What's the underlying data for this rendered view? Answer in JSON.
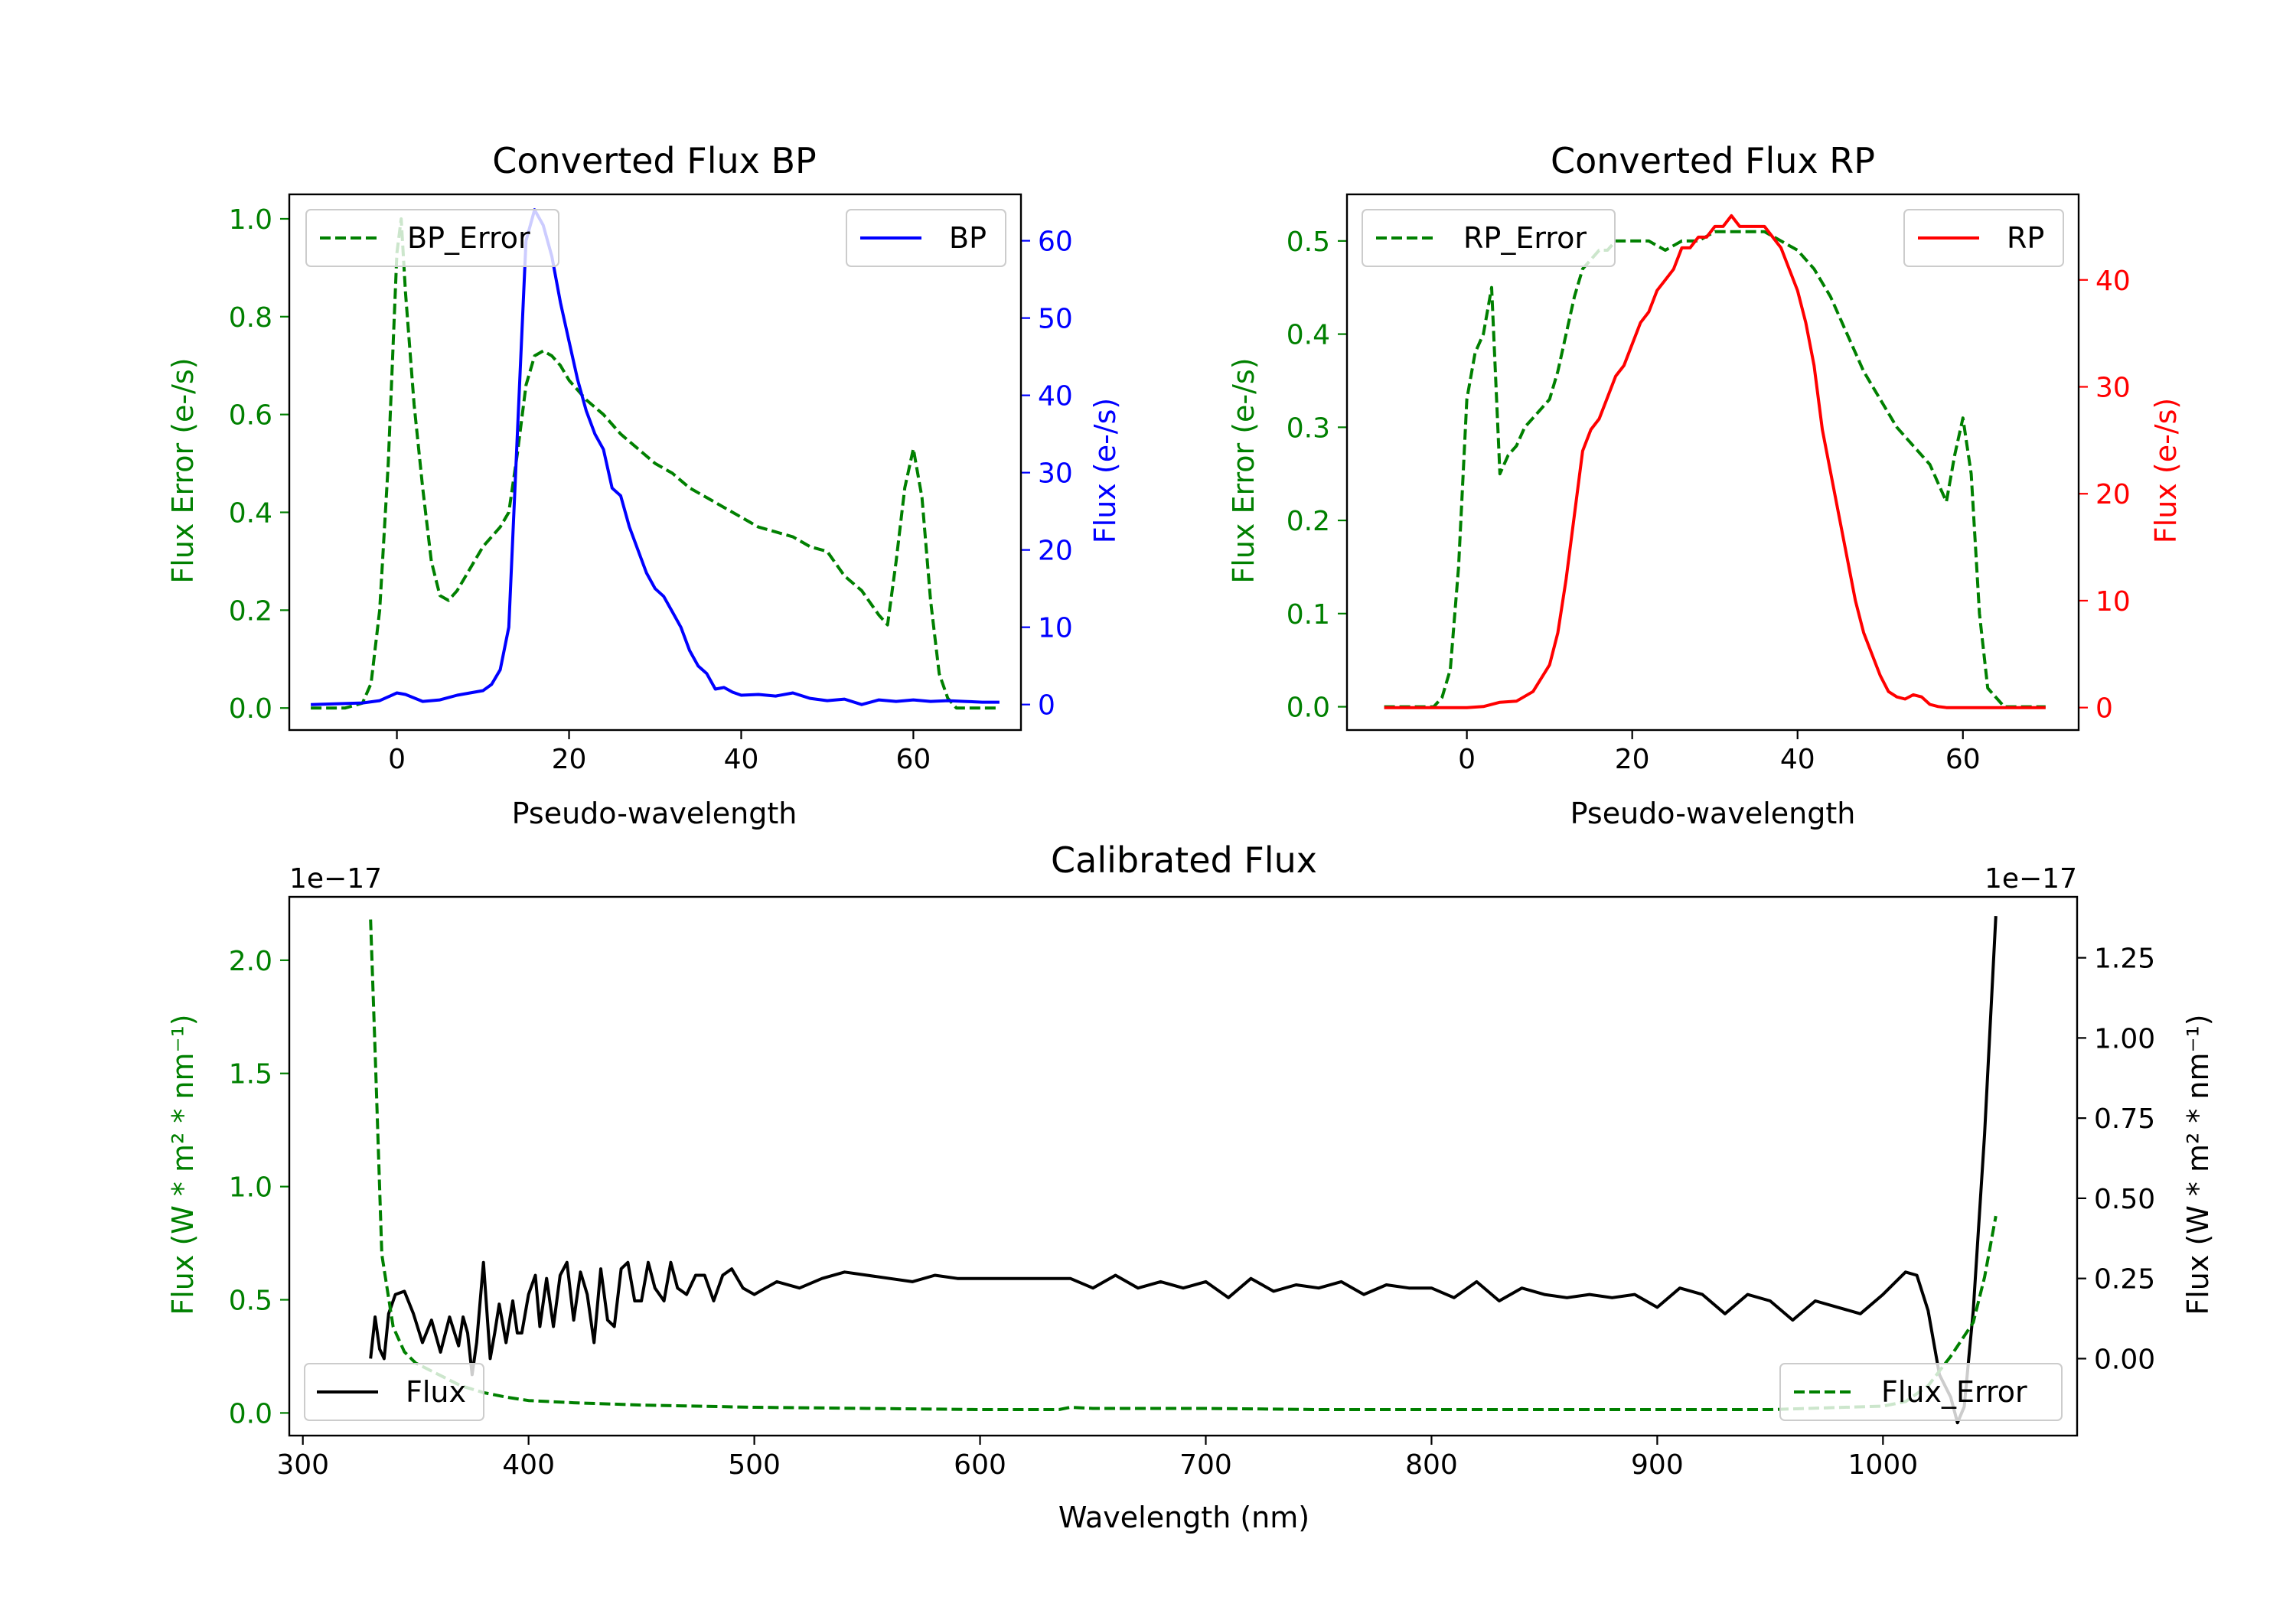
{
  "chart_data": [
    {
      "type": "line",
      "title": "Converted Flux BP",
      "xlabel": "Pseudo-wavelength",
      "xlim": [
        -12.5,
        72.5
      ],
      "xticks": [
        0,
        20,
        40,
        60
      ],
      "left_axis": {
        "label": "Flux Error (e-/s)",
        "color": "#008000",
        "ylim": [
          -0.045,
          1.05
        ],
        "ticks": [
          0.0,
          0.2,
          0.4,
          0.6,
          0.8,
          1.0
        ],
        "tick_labels": [
          "0.0",
          "0.2",
          "0.4",
          "0.6",
          "0.8",
          "1.0"
        ]
      },
      "right_axis": {
        "label": "Flux (e-/s)",
        "color": "#0000ff",
        "ylim": [
          -3.3,
          66
        ],
        "ticks": [
          0,
          10,
          20,
          30,
          40,
          50,
          60
        ],
        "tick_labels": [
          "0",
          "10",
          "20",
          "30",
          "40",
          "50",
          "60"
        ]
      },
      "series": [
        {
          "name": "BP_Error",
          "axis": "left",
          "color": "#008000",
          "style": "dashed",
          "legend": "upper left",
          "x": [
            -10,
            -6,
            -4,
            -3,
            -2,
            -1,
            0,
            0.5,
            1,
            2,
            3,
            4,
            5,
            6,
            7,
            8,
            9,
            10,
            11,
            12,
            13,
            14,
            15,
            16,
            17,
            18,
            19,
            20,
            22,
            24,
            26,
            28,
            30,
            32,
            34,
            36,
            38,
            40,
            42,
            44,
            46,
            48,
            50,
            52,
            54,
            56,
            57,
            58,
            59,
            60,
            61,
            62,
            63,
            64,
            65,
            66,
            70
          ],
          "y": [
            0.0,
            0.0,
            0.01,
            0.05,
            0.2,
            0.5,
            0.93,
            1.0,
            0.85,
            0.62,
            0.45,
            0.3,
            0.23,
            0.22,
            0.24,
            0.27,
            0.3,
            0.33,
            0.35,
            0.37,
            0.4,
            0.52,
            0.66,
            0.72,
            0.73,
            0.72,
            0.7,
            0.67,
            0.63,
            0.6,
            0.56,
            0.53,
            0.5,
            0.48,
            0.45,
            0.43,
            0.41,
            0.39,
            0.37,
            0.36,
            0.35,
            0.33,
            0.32,
            0.27,
            0.24,
            0.19,
            0.17,
            0.3,
            0.45,
            0.53,
            0.43,
            0.22,
            0.07,
            0.02,
            0.0,
            0.0,
            0.0
          ]
        },
        {
          "name": "BP",
          "axis": "right",
          "color": "#0000ff",
          "style": "solid",
          "legend": "upper right",
          "x": [
            -10,
            -4,
            -2,
            0,
            1,
            3,
            5,
            7,
            9,
            10,
            11,
            12,
            13,
            14,
            15,
            16,
            17,
            18,
            19,
            20,
            21,
            22,
            23,
            24,
            25,
            26,
            27,
            28,
            29,
            30,
            31,
            32,
            33,
            34,
            35,
            36,
            37,
            38,
            39,
            40,
            42,
            44,
            46,
            48,
            50,
            52,
            54,
            56,
            58,
            60,
            62,
            64,
            66,
            68,
            70
          ],
          "y": [
            0,
            0.2,
            0.5,
            1.5,
            1.3,
            0.4,
            0.6,
            1.2,
            1.6,
            1.8,
            2.6,
            4.5,
            10,
            35,
            60,
            64,
            62,
            58,
            52,
            47,
            42,
            38,
            35,
            33,
            28,
            27,
            23,
            20,
            17,
            15,
            14,
            12,
            10,
            7,
            5,
            4,
            2,
            2.2,
            1.6,
            1.2,
            1.3,
            1.1,
            1.5,
            0.8,
            0.5,
            0.7,
            0.0,
            0.6,
            0.4,
            0.6,
            0.4,
            0.5,
            0.4,
            0.3,
            0.3
          ]
        }
      ],
      "legend_labels": [
        "BP_Error",
        "BP"
      ]
    },
    {
      "type": "line",
      "title": "Converted Flux RP",
      "xlabel": "Pseudo-wavelength",
      "xlim": [
        -14.5,
        74
      ],
      "xticks": [
        0,
        20,
        40,
        60
      ],
      "left_axis": {
        "label": "Flux Error (e-/s)",
        "color": "#008000",
        "ylim": [
          -0.025,
          0.55
        ],
        "ticks": [
          0.0,
          0.1,
          0.2,
          0.3,
          0.4,
          0.5
        ],
        "tick_labels": [
          "0.0",
          "0.1",
          "0.2",
          "0.3",
          "0.4",
          "0.5"
        ]
      },
      "right_axis": {
        "label": "Flux (e-/s)",
        "color": "#ff0000",
        "ylim": [
          -2.1,
          48
        ],
        "ticks": [
          0,
          10,
          20,
          30,
          40
        ],
        "tick_labels": [
          "0",
          "10",
          "20",
          "30",
          "40"
        ]
      },
      "series": [
        {
          "name": "RP_Error",
          "axis": "left",
          "color": "#008000",
          "style": "dashed",
          "legend": "upper left",
          "x": [
            -10,
            -4,
            -3,
            -2,
            -1,
            0,
            1,
            2,
            3,
            4,
            5,
            6,
            7,
            8,
            9,
            10,
            11,
            12,
            13,
            14,
            15,
            16,
            17,
            18,
            19,
            20,
            22,
            24,
            26,
            28,
            30,
            32,
            34,
            36,
            38,
            40,
            42,
            44,
            46,
            48,
            50,
            52,
            54,
            56,
            57,
            58,
            59,
            60,
            61,
            62,
            63,
            65,
            70
          ],
          "y": [
            0.0,
            0.0,
            0.01,
            0.04,
            0.15,
            0.33,
            0.38,
            0.4,
            0.45,
            0.25,
            0.27,
            0.28,
            0.3,
            0.31,
            0.32,
            0.33,
            0.36,
            0.4,
            0.44,
            0.47,
            0.48,
            0.49,
            0.49,
            0.5,
            0.5,
            0.5,
            0.5,
            0.49,
            0.5,
            0.5,
            0.51,
            0.51,
            0.51,
            0.51,
            0.5,
            0.49,
            0.47,
            0.44,
            0.4,
            0.36,
            0.33,
            0.3,
            0.28,
            0.26,
            0.24,
            0.22,
            0.27,
            0.31,
            0.25,
            0.1,
            0.02,
            0.0,
            0.0
          ]
        },
        {
          "name": "RP",
          "axis": "right",
          "color": "#ff0000",
          "style": "solid",
          "legend": "upper right",
          "x": [
            -10,
            0,
            2,
            4,
            6,
            8,
            10,
            11,
            12,
            13,
            14,
            15,
            16,
            17,
            18,
            19,
            20,
            21,
            22,
            23,
            24,
            25,
            26,
            27,
            28,
            29,
            30,
            31,
            32,
            33,
            34,
            35,
            36,
            37,
            38,
            39,
            40,
            41,
            42,
            43,
            44,
            45,
            46,
            47,
            48,
            49,
            50,
            51,
            52,
            53,
            54,
            55,
            56,
            57,
            58,
            60,
            62,
            70
          ],
          "y": [
            0,
            0,
            0.1,
            0.5,
            0.6,
            1.5,
            4,
            7,
            12,
            18,
            24,
            26,
            27,
            29,
            31,
            32,
            34,
            36,
            37,
            39,
            40,
            41,
            43,
            43,
            44,
            44,
            45,
            45,
            46,
            45,
            45,
            45,
            45,
            44,
            43,
            41,
            39,
            36,
            32,
            26,
            22,
            18,
            14,
            10,
            7,
            5,
            3,
            1.5,
            1,
            0.8,
            1.2,
            1.0,
            0.3,
            0.1,
            0,
            0,
            0,
            0
          ]
        }
      ],
      "legend_labels": [
        "RP_Error",
        "RP"
      ]
    },
    {
      "type": "line",
      "title": "Calibrated Flux",
      "xlabel": "Wavelength (nm)",
      "xlim": [
        294,
        1086
      ],
      "xticks": [
        300,
        400,
        500,
        600,
        700,
        800,
        900,
        1000
      ],
      "left_axis": {
        "label": "Flux (W * m² * nm⁻¹)",
        "color": "#008000",
        "offset_text": "1e−17",
        "ylim": [
          -0.1,
          2.28
        ],
        "ticks": [
          0.0,
          0.5,
          1.0,
          1.5,
          2.0
        ],
        "tick_labels": [
          "0.0",
          "0.5",
          "1.0",
          "1.5",
          "2.0"
        ]
      },
      "right_axis": {
        "label": "Flux (W * m² * nm⁻¹)",
        "color": "#000000",
        "offset_text": "1e−17",
        "ylim": [
          -0.24,
          1.44
        ],
        "ticks": [
          0.0,
          0.25,
          0.5,
          0.75,
          1.0,
          1.25
        ],
        "tick_labels": [
          "0.00",
          "0.25",
          "0.50",
          "0.75",
          "1.00",
          "1.25"
        ]
      },
      "series": [
        {
          "name": "Flux",
          "axis": "right",
          "color": "#000000",
          "style": "solid",
          "legend": "lower left",
          "x": [
            330,
            332,
            334,
            336,
            338,
            341,
            345,
            349,
            353,
            357,
            361,
            365,
            369,
            371,
            373,
            375,
            377,
            380,
            383,
            385,
            387,
            390,
            393,
            395,
            397,
            400,
            403,
            405,
            408,
            411,
            414,
            417,
            420,
            423,
            426,
            429,
            432,
            435,
            438,
            441,
            444,
            447,
            450,
            453,
            456,
            460,
            463,
            466,
            470,
            474,
            478,
            482,
            486,
            490,
            495,
            500,
            505,
            510,
            520,
            530,
            540,
            550,
            560,
            570,
            580,
            590,
            600,
            620,
            640,
            650,
            660,
            670,
            680,
            690,
            700,
            710,
            720,
            730,
            740,
            750,
            760,
            770,
            780,
            790,
            800,
            810,
            820,
            830,
            840,
            850,
            860,
            870,
            880,
            890,
            900,
            910,
            920,
            930,
            940,
            950,
            960,
            970,
            980,
            990,
            1000,
            1010,
            1015,
            1020,
            1025,
            1030,
            1033,
            1036,
            1040,
            1045,
            1050
          ],
          "y": [
            0.0,
            0.13,
            0.03,
            0.0,
            0.14,
            0.2,
            0.21,
            0.14,
            0.05,
            0.12,
            0.02,
            0.13,
            0.04,
            0.13,
            0.08,
            -0.05,
            0.05,
            0.3,
            0.0,
            0.08,
            0.17,
            0.05,
            0.18,
            0.08,
            0.08,
            0.2,
            0.26,
            0.1,
            0.25,
            0.1,
            0.26,
            0.3,
            0.12,
            0.27,
            0.2,
            0.05,
            0.28,
            0.12,
            0.1,
            0.28,
            0.3,
            0.18,
            0.18,
            0.3,
            0.22,
            0.18,
            0.3,
            0.22,
            0.2,
            0.26,
            0.26,
            0.18,
            0.26,
            0.28,
            0.22,
            0.2,
            0.22,
            0.24,
            0.22,
            0.25,
            0.27,
            0.26,
            0.25,
            0.24,
            0.26,
            0.25,
            0.25,
            0.25,
            0.25,
            0.22,
            0.26,
            0.22,
            0.24,
            0.22,
            0.24,
            0.19,
            0.25,
            0.21,
            0.23,
            0.22,
            0.24,
            0.2,
            0.23,
            0.22,
            0.22,
            0.19,
            0.24,
            0.18,
            0.22,
            0.2,
            0.19,
            0.2,
            0.19,
            0.2,
            0.16,
            0.22,
            0.2,
            0.14,
            0.2,
            0.18,
            0.12,
            0.18,
            0.16,
            0.14,
            0.2,
            0.27,
            0.26,
            0.15,
            -0.05,
            -0.12,
            -0.2,
            -0.15,
            0.15,
            0.7,
            1.38
          ]
        },
        {
          "name": "Flux_Error",
          "axis": "left",
          "color": "#008000",
          "style": "dashed",
          "legend": "lower right",
          "x": [
            330,
            332,
            335,
            340,
            345,
            350,
            360,
            370,
            380,
            390,
            400,
            420,
            450,
            500,
            550,
            600,
            620,
            635,
            640,
            650,
            700,
            750,
            800,
            850,
            900,
            950,
            1000,
            1010,
            1020,
            1030,
            1040,
            1045,
            1050
          ],
          "y": [
            2.18,
            1.6,
            0.7,
            0.38,
            0.27,
            0.22,
            0.17,
            0.12,
            0.09,
            0.07,
            0.055,
            0.045,
            0.035,
            0.025,
            0.02,
            0.015,
            0.015,
            0.015,
            0.025,
            0.02,
            0.02,
            0.015,
            0.015,
            0.015,
            0.015,
            0.015,
            0.03,
            0.05,
            0.12,
            0.25,
            0.4,
            0.6,
            0.87
          ]
        }
      ],
      "legend_labels": [
        "Flux",
        "Flux_Error"
      ]
    }
  ]
}
